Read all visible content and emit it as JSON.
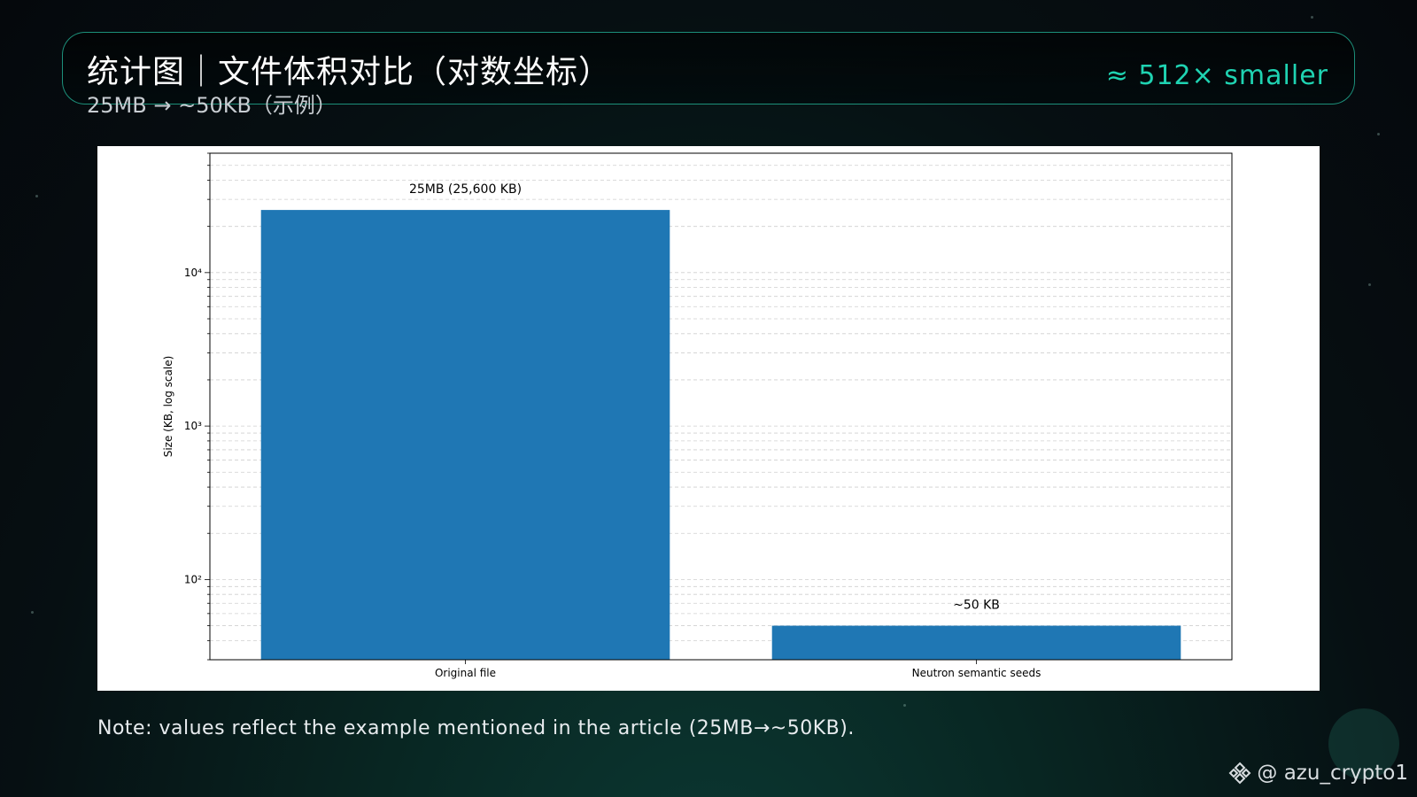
{
  "header": {
    "title": "统计图｜文件体积对比（对数坐标）",
    "subtitle": "25MB → ~50KB（示例）",
    "ratio_badge": "≈ 512× smaller"
  },
  "chart_data": {
    "type": "bar",
    "yscale": "log",
    "categories": [
      "Original file",
      "Neutron semantic seeds"
    ],
    "values": [
      25600,
      50
    ],
    "data_labels": [
      "25MB (25,600 KB)",
      "~50 KB"
    ],
    "ylabel": "Size (KB, log scale)",
    "xlabel": "",
    "ylim": [
      30,
      60000
    ],
    "y_ticks": [
      100,
      1000,
      10000
    ],
    "y_tick_labels": [
      "10²",
      "10³",
      "10⁴"
    ],
    "grid": "y-major-and-minor-dashed",
    "bar_color": "#1f77b4"
  },
  "note": "Note: values reflect the example mentioned in the article (25MB→~50KB).",
  "watermark": {
    "handle": "@ azu_crypto1",
    "icon": "binance-diamond-icon"
  }
}
